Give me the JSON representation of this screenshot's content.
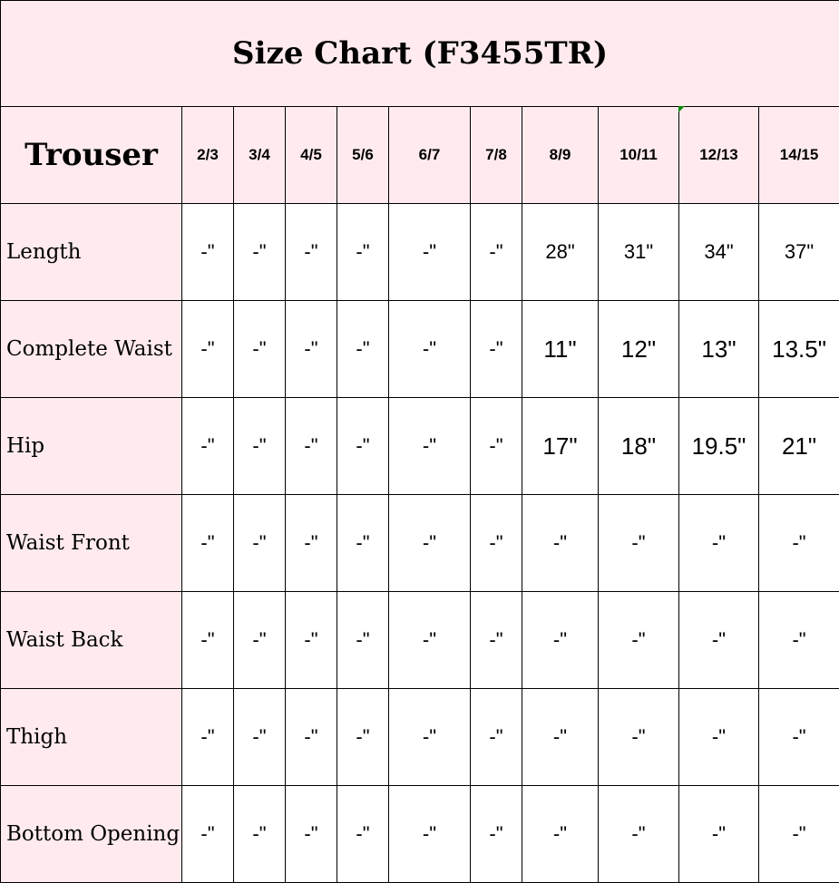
{
  "title": "Size Chart (F3455TR)",
  "header": {
    "corner": "Trouser",
    "sizes": [
      "2/3",
      "3/4",
      "4/5",
      "5/6",
      "6/7",
      "7/8",
      "8/9",
      "10/11",
      "12/13",
      "14/15"
    ]
  },
  "rows": [
    {
      "label": "Length",
      "values": [
        "-\"",
        "-\"",
        "-\"",
        "-\"",
        "-\"",
        "-\"",
        "28\"",
        "31\"",
        "34\"",
        "37\""
      ]
    },
    {
      "label": "Complete Waist",
      "values": [
        "-\"",
        "-\"",
        "-\"",
        "-\"",
        "-\"",
        "-\"",
        "11\"",
        "12\"",
        "13\"",
        "13.5\""
      ]
    },
    {
      "label": "Hip",
      "values": [
        "-\"",
        "-\"",
        "-\"",
        "-\"",
        "-\"",
        "-\"",
        "17\"",
        "18\"",
        "19.5\"",
        "21\""
      ]
    },
    {
      "label": "Waist Front",
      "values": [
        "-\"",
        "-\"",
        "-\"",
        "-\"",
        "-\"",
        "-\"",
        "-\"",
        "-\"",
        "-\"",
        "-\""
      ]
    },
    {
      "label": "Waist Back",
      "values": [
        "-\"",
        "-\"",
        "-\"",
        "-\"",
        "-\"",
        "-\"",
        "-\"",
        "-\"",
        "-\"",
        "-\""
      ]
    },
    {
      "label": "Thigh",
      "values": [
        "-\"",
        "-\"",
        "-\"",
        "-\"",
        "-\"",
        "-\"",
        "-\"",
        "-\"",
        "-\"",
        "-\""
      ]
    },
    {
      "label": "Bottom Opening",
      "values": [
        "-\"",
        "-\"",
        "-\"",
        "-\"",
        "-\"",
        "-\"",
        "-\"",
        "-\"",
        "-\"",
        "-\""
      ]
    }
  ],
  "colors": {
    "header_bg": "#ffebee",
    "border": "#000000",
    "cell_marker": "#0a8a0a"
  }
}
